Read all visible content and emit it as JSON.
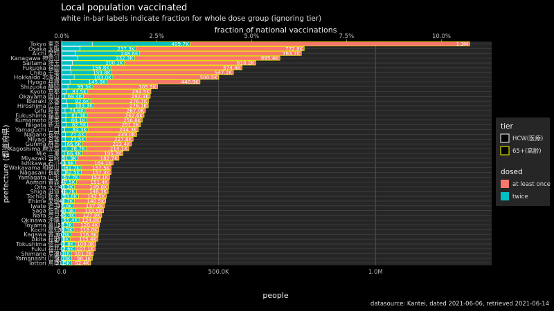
{
  "chart_data": {
    "type": "bar",
    "orientation": "horizontal",
    "title": "Local population vaccinated",
    "subtitle": "white in-bar labels indicate fraction for whole dose group (ignoring tier)",
    "xlabel": "people",
    "x2label": "fraction of national vaccinations",
    "ylabel": "prefecture (都道府県)",
    "caption": "datasource: Kantei, dated 2021-06-06, retrieved 2021-06-14",
    "xlim": [
      0,
      1370000
    ],
    "xticks": [
      0,
      500000,
      1000000
    ],
    "xtick_labels": [
      "0.0",
      "500.0K",
      "1.0M"
    ],
    "x2ticks": [
      0,
      2.5,
      5.0,
      7.5,
      10.0
    ],
    "x2tick_labels": [
      "0.0%",
      "2.5%",
      "5.0%",
      "7.5%",
      "10.0%"
    ],
    "grid": true,
    "legend": [
      {
        "title": "tier",
        "entries": [
          {
            "label": "HCW(医療)",
            "fill": "#000000",
            "stroke": "#ffffff"
          },
          {
            "label": "65+(高齢)",
            "fill": "#000000",
            "stroke": "#ffff00"
          }
        ]
      },
      {
        "title": "dosed",
        "entries": [
          {
            "label": "at least once",
            "fill": "#f8766d"
          },
          {
            "label": "twice",
            "fill": "#00bfc4"
          }
        ]
      }
    ],
    "legend_position": "right",
    "colors": {
      "at_least_once": "#f8766d",
      "twice": "#00bfc4",
      "hcw_outline": "#ffffff",
      "elderly_outline": "#ffff00"
    },
    "categories": [
      "Tokyo 東京",
      "Osaka 大阪",
      "Aichi 愛知",
      "Kanagawa 神奈川",
      "Saitama 埼玉",
      "Fukuoka 福岡",
      "Chiba 千葉",
      "Hokkaido 北海道",
      "Hyogo 兵庫",
      "Shizuoka 静岡",
      "Kyoto 京都",
      "Okayama 岡山",
      "Ibaraki 茨城",
      "Hiroshima 広島",
      "Gifu 岐阜",
      "Fukushima 福島",
      "Kumamoto 熊本",
      "Niigata 新潟",
      "Yamaguchi 山口",
      "Nagano 長野",
      "Miyagi 宮城",
      "Gunma 群馬",
      "Kagoshima 鹿児島",
      "Mie 三重",
      "Miyazaki 宮崎",
      "Ishikawa 石川",
      "Wakayama 和歌山",
      "Nagasaki 長崎",
      "Yamagata 山形",
      "Aomori 青森",
      "Oita 大分",
      "Shiga 滋賀",
      "Tochigi 栃木",
      "Ehime 愛媛",
      "Iwate 岩手",
      "Saga 佐賀",
      "Nara 奈良",
      "Okinawa 沖縄",
      "Toyama 富山",
      "Kochi 高知",
      "Kagawa 香川",
      "Akita 秋田",
      "Tokushima 徳島",
      "Fukui 福井",
      "Shimane 島根",
      "Yamanashi 山梨",
      "Tottori 鳥取"
    ],
    "series": [
      {
        "name": "at least once",
        "values": [
          1300000,
          772800,
          763700,
          695400,
          618200,
          574400,
          547200,
          500500,
          440900,
          305500,
          284500,
          282300,
          276700,
          276100,
          267000,
          262600,
          256800,
          251200,
          244300,
          239000,
          227800,
          222400,
          214100,
          195200,
          182700,
          164100,
          157500,
          157300,
          153100,
          151400,
          149600,
          148300,
          142500,
          140500,
          137200,
          133500,
          127900,
          124800,
          120400,
          118600,
          116900,
          115400,
          109000,
          107100,
          101200,
          98100,
          92400
        ]
      },
      {
        "name": "twice",
        "values": [
          409700,
          237300,
          248600,
          232300,
          200100,
          156800,
          159800,
          163000,
          145000,
          99300,
          83500,
          69400,
          92600,
          103300,
          74600,
          81300,
          80100,
          82900,
          84300,
          77400,
          77500,
          66600,
          78700,
          66400,
          51300,
          43800,
          61700,
          62500,
          57700,
          47500,
          41300,
          46700,
          53600,
          40700,
          37000,
          44900,
          45400,
          55400,
          37300,
          39500,
          30300,
          27800,
          42800,
          42600,
          31100,
          32300,
          31500
        ]
      },
      {
        "name": "HCW(医療)",
        "values": [
          97600,
          58600,
          44300,
          51000,
          34300,
          27900,
          29800,
          39900,
          26700,
          20200,
          13900,
          10500,
          15900,
          17900,
          10700,
          13500,
          13100,
          14300,
          9800,
          11900,
          11500,
          11500,
          13600,
          8800,
          7300,
          8500,
          9000,
          12500,
          7700,
          9500,
          7600,
          10200,
          11000,
          5800,
          6800,
          4600,
          6700,
          8100,
          6200,
          4500,
          5500,
          5500,
          6200,
          7000,
          5000,
          6300,
          5300
        ]
      }
    ],
    "bar_labels_once": [
      "1.3M",
      "772.8K",
      "763.7K",
      "695.4K",
      "618.2K",
      "574.4K",
      "547.2K",
      "500.5K",
      "440.9K",
      "305.5K",
      "284.5K",
      "282.3K",
      "276.7K",
      "276.1K",
      "267.0K",
      "262.6K",
      "256.8K",
      "251.2K",
      "244.3K",
      "239.0K",
      "227.8K",
      "222.4K",
      "214.1K",
      "195.2K",
      "182.7K",
      "164.1K",
      "157.5K",
      "157.3K",
      "153.1K",
      "151.4K",
      "149.6K",
      "148.3K",
      "142.5K",
      "140.5K",
      "137.2K",
      "133.5K",
      "127.9K",
      "124.8K",
      "120.4K",
      "118.6K",
      "116.9K",
      "115.4K",
      "109.0K",
      "107.1K",
      "101.2K",
      "98.1K",
      "92.4K"
    ],
    "bar_labels_twice": [
      "409.7K",
      "237.3K",
      "248.6K",
      "232.3K",
      "200.1K",
      "156.8K",
      "159.8K",
      "163.0K",
      "145.0K",
      "99.3K",
      "83.5K",
      "69.4K",
      "92.6K",
      "103.3K",
      "74.6K",
      "81.3K",
      "80.1K",
      "82.9K",
      "84.3K",
      "77.4K",
      "77.5K",
      "66.6K",
      "78.7K",
      "66.4K",
      "51.3K",
      "43.8K",
      "61.7K",
      "62.5K",
      "57.7K",
      "47.5K",
      "41.3K",
      "46.7K",
      "53.6K",
      "40.7K",
      "37.0K",
      "44.9K",
      "45.4K",
      "55.4K",
      "37.3K",
      "39.5K",
      "30.3K",
      "27.8K",
      "42.8K",
      "42.6K",
      "31.1K",
      "32.3K",
      "31.5K"
    ]
  }
}
